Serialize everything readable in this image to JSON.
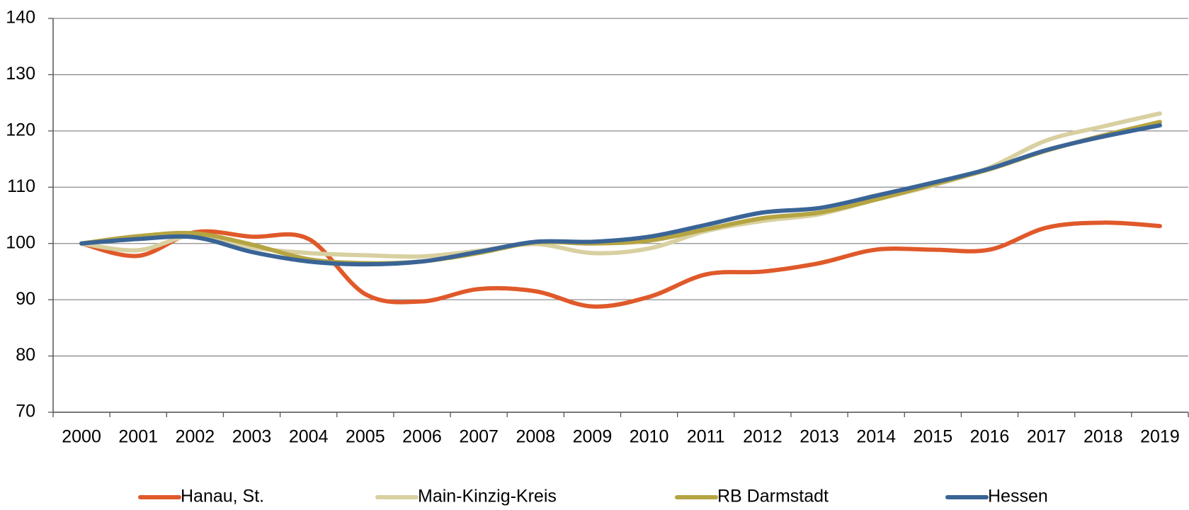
{
  "chart_data": {
    "type": "line",
    "categories": [
      "2000",
      "2001",
      "2002",
      "2003",
      "2004",
      "2005",
      "2006",
      "2007",
      "2008",
      "2009",
      "2010",
      "2011",
      "2012",
      "2013",
      "2014",
      "2015",
      "2016",
      "2017",
      "2018",
      "2019"
    ],
    "series": [
      {
        "name": "Hanau, St.",
        "color": "#e0592a",
        "values": [
          100,
          97.8,
          102,
          101.2,
          100.8,
          91,
          89.7,
          91.9,
          91.5,
          88.8,
          90.5,
          94.5,
          95,
          96.5,
          98.9,
          98.9,
          98.9,
          102.8,
          103.7,
          103.1
        ]
      },
      {
        "name": "Main-Kinzig-Kreis",
        "color": "#d8d0a0",
        "values": [
          100,
          98.8,
          101.5,
          99.3,
          98.3,
          97.9,
          97.7,
          98.7,
          99.9,
          98.3,
          99.1,
          102.2,
          104,
          105.2,
          107.8,
          110.3,
          113.5,
          118.3,
          120.8,
          123.1
        ]
      },
      {
        "name": "RB Darmstadt",
        "color": "#b5a442",
        "values": [
          100,
          101.3,
          101.8,
          99.8,
          97.2,
          96.5,
          96.8,
          98.3,
          100.2,
          100,
          100.5,
          102.5,
          104.5,
          105.5,
          107.8,
          110.5,
          113.2,
          116.5,
          119.2,
          121.6
        ]
      },
      {
        "name": "Hessen",
        "color": "#3a6496",
        "values": [
          100,
          100.8,
          101.1,
          98.5,
          96.8,
          96.3,
          96.8,
          98.5,
          100.3,
          100.3,
          101.2,
          103.3,
          105.5,
          106.3,
          108.5,
          110.8,
          113.3,
          116.6,
          119,
          121
        ]
      }
    ],
    "ylim": [
      70,
      140
    ],
    "yticks": [
      70,
      80,
      90,
      100,
      110,
      120,
      130,
      140
    ],
    "grid": true,
    "smooth": true,
    "legend": "bottom"
  }
}
